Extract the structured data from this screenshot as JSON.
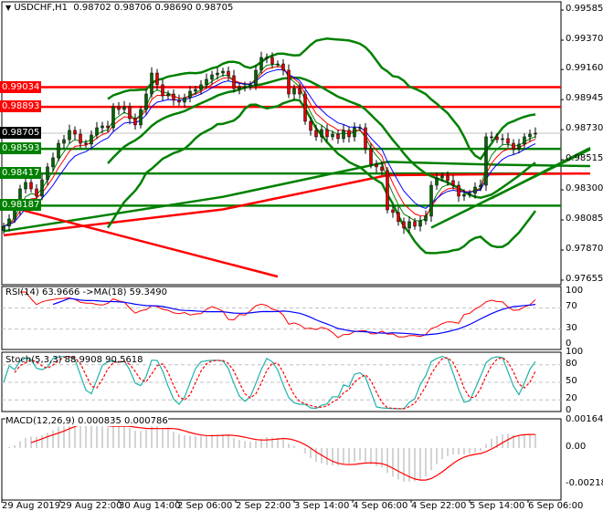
{
  "header": {
    "arrow": "▼",
    "symbol": "USDCHF,H1",
    "ohlc": "0.98702 0.98706 0.98690 0.98705"
  },
  "colors": {
    "bull": "#006400",
    "bear": "#e00000",
    "band": "#008000",
    "level_red": "#ff0000",
    "level_green": "#008000",
    "current": "#000000",
    "rsi": "#ff0000",
    "rsi_ma": "#0000ff",
    "stoch_main": "#20b2aa",
    "stoch_signal": "#ff0000",
    "macd_hist": "#a9a9a9",
    "macd_signal": "#ff0000"
  },
  "chart_data": [
    {
      "type": "candlestick",
      "title": "USDCHF,H1",
      "ylim": [
        0.97655,
        0.99585
      ],
      "y_ticks": [
        "0.99585",
        "0.99370",
        "0.99160",
        "0.98945",
        "0.98730",
        "0.98515",
        "0.98300",
        "0.98085",
        "0.97870",
        "0.97655"
      ],
      "x_ticks": [
        "29 Aug 2019",
        "29 Aug 22:00",
        "30 Aug 14:00",
        "2 Sep 06:00",
        "2 Sep 22:00",
        "3 Sep 14:00",
        "4 Sep 06:00",
        "4 Sep 22:00",
        "5 Sep 14:00",
        "6 Sep 06:00"
      ],
      "close": [
        0.9804,
        0.98092,
        0.98157,
        0.98307,
        0.98353,
        0.98307,
        0.98255,
        0.98372,
        0.98464,
        0.98529,
        0.98633,
        0.98659,
        0.98725,
        0.98698,
        0.98633,
        0.98627,
        0.98692,
        0.98744,
        0.98757,
        0.98744,
        0.98894,
        0.98874,
        0.98894,
        0.98809,
        0.98764,
        0.98874,
        0.98985,
        0.99135,
        0.99051,
        0.98972,
        0.98985,
        0.9894,
        0.98927,
        0.98959,
        0.99005,
        0.99018,
        0.99051,
        0.9909,
        0.99122,
        0.99135,
        0.99148,
        0.99116,
        0.99024,
        0.99037,
        0.99037,
        0.99051,
        0.99155,
        0.99246,
        0.99246,
        0.992,
        0.992,
        0.99155,
        0.98985,
        0.99024,
        0.98985,
        0.9879,
        0.98725,
        0.98679,
        0.98731,
        0.98679,
        0.98698,
        0.98666,
        0.98725,
        0.98679,
        0.98744,
        0.98744,
        0.98594,
        0.98483,
        0.98464,
        0.98438,
        0.98157,
        0.98138,
        0.98073,
        0.98027,
        0.98073,
        0.9804,
        0.98079,
        0.98112,
        0.98333,
        0.98385,
        0.98399,
        0.98366,
        0.98333,
        0.98255,
        0.98268,
        0.98275,
        0.9832,
        0.98333,
        0.98679,
        0.98679,
        0.98659,
        0.98666,
        0.98633,
        0.98594,
        0.98627,
        0.98679,
        0.98698,
        0.98705
      ],
      "long_ma_red": [
        [
          0,
          0.97975
        ],
        [
          40,
          0.9816
        ],
        [
          70,
          0.98405
        ],
        [
          107,
          0.98417
        ]
      ],
      "long_ma_green": [
        [
          0,
          0.98005
        ],
        [
          40,
          0.9825
        ],
        [
          70,
          0.985
        ],
        [
          90,
          0.9848
        ],
        [
          107,
          0.9847
        ]
      ],
      "trendline_red": [
        [
          0,
          0.9819
        ],
        [
          50,
          0.9768
        ]
      ],
      "trendlines_green": [
        [
          [
            78,
            0.9803
          ],
          [
            107,
            0.9859
          ]
        ],
        [
          [
            89,
            0.9824
          ],
          [
            107,
            0.986
          ]
        ]
      ],
      "levels": [
        {
          "value": 0.99034,
          "label": "0.99034",
          "color": "#ff0000"
        },
        {
          "value": 0.98893,
          "label": "0.98893",
          "color": "#ff0000"
        },
        {
          "value": 0.98705,
          "label": "0.98705",
          "color": "#000000",
          "current": true
        },
        {
          "value": 0.98593,
          "label": "0.98593",
          "color": "#008000"
        },
        {
          "value": 0.98417,
          "label": "0.98417",
          "color": "#008000"
        },
        {
          "value": 0.98187,
          "label": "0.98187",
          "color": "#008000"
        }
      ]
    },
    {
      "type": "line",
      "title": "RSI(14) 63.9666  ->MA(18) 59.3490",
      "ylim": [
        0,
        100
      ],
      "y_ticks": [
        "100",
        "70",
        "30",
        "0"
      ],
      "levels": [
        70,
        30
      ]
    },
    {
      "type": "line",
      "title": "Stoch(5,3,3) 88.9908 90.5618",
      "ylim": [
        0,
        100
      ],
      "y_ticks": [
        "100",
        "80",
        "50",
        "20",
        "0"
      ],
      "levels": [
        80,
        50,
        20
      ]
    },
    {
      "type": "bar",
      "title": "MACD(12,26,9) 0.000835 0.000786",
      "ylim": [
        -0.002189,
        0.001641
      ],
      "y_ticks": [
        "0.001641",
        "0.00",
        "-0.002189"
      ]
    }
  ]
}
